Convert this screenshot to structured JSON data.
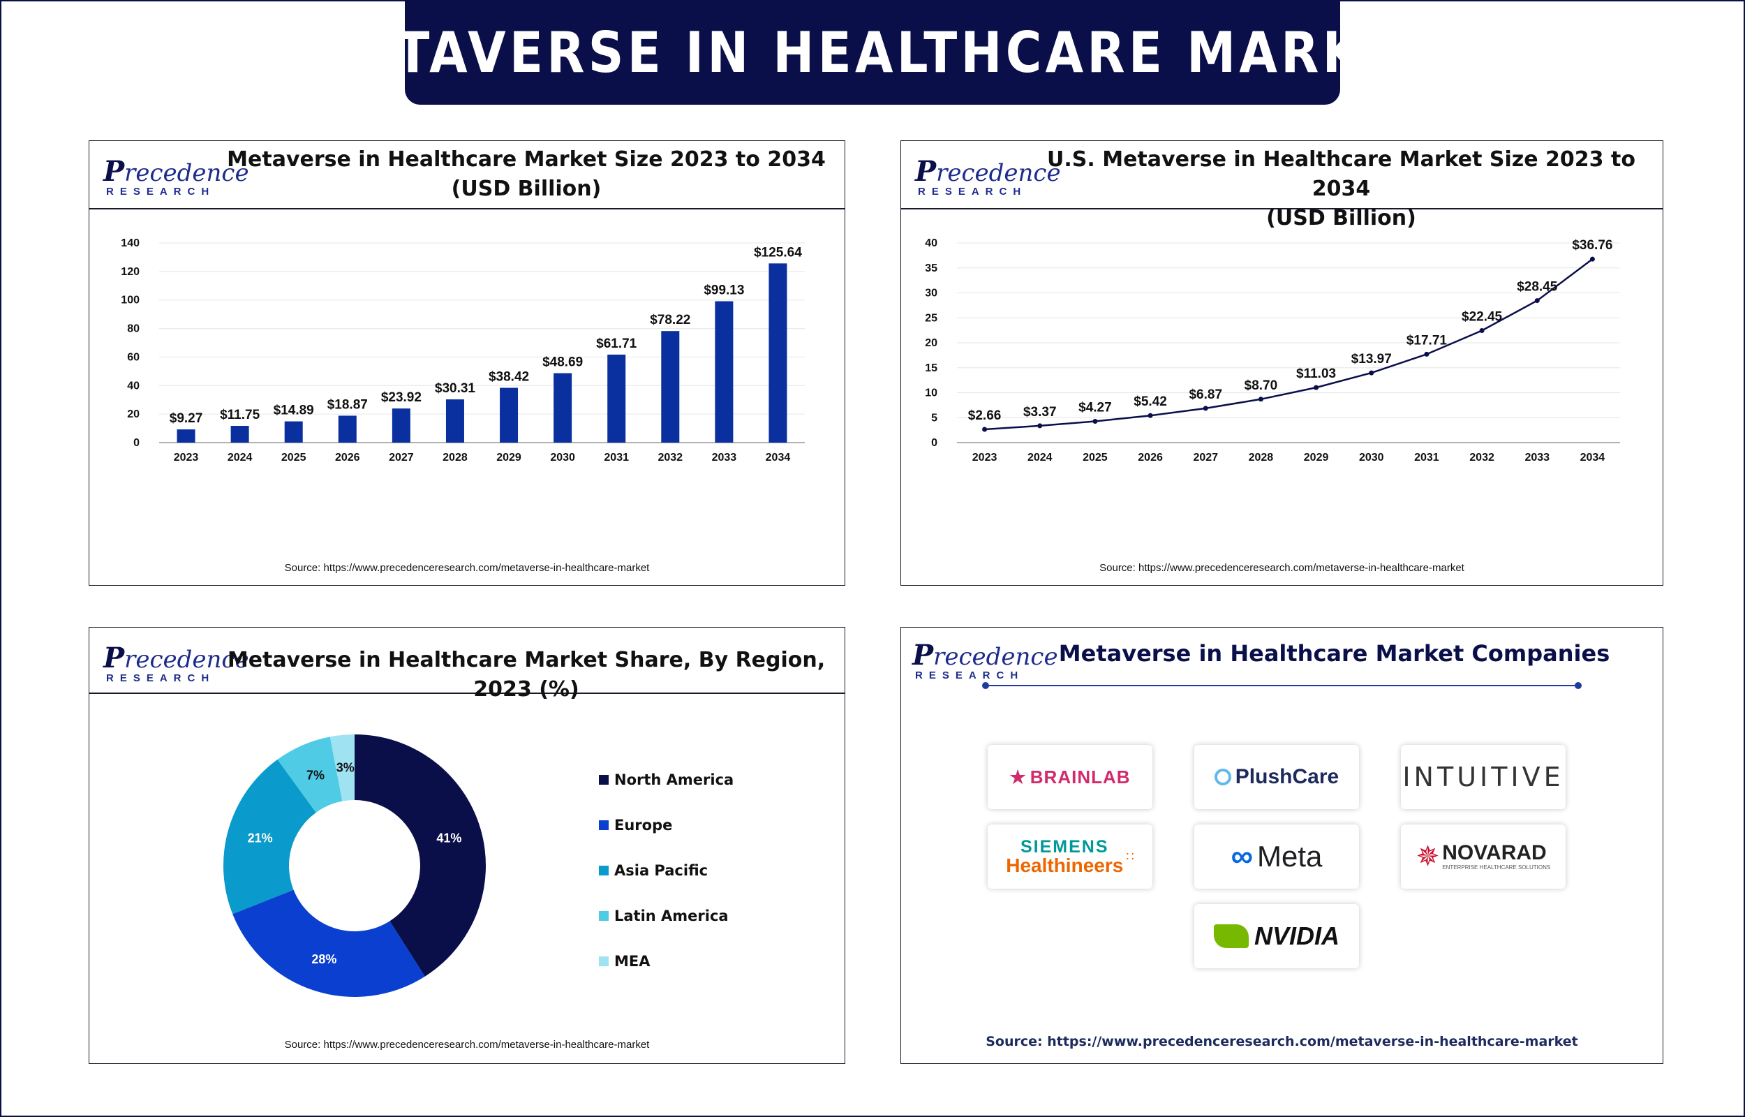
{
  "banner": {
    "title": "METAVERSE IN HEALTHCARE MARKET"
  },
  "logo": {
    "word_cap": "P",
    "word_rest": "recedence",
    "sub": "RESEARCH"
  },
  "panels": {
    "global": {
      "title_line1": "Metaverse in Healthcare Market Size 2023 to 2034",
      "title_line2": "(USD Billion)",
      "source": "Source: https://www.precedenceresearch.com/metaverse-in-healthcare-market"
    },
    "us": {
      "title_line1": "U.S. Metaverse in Healthcare Market Size 2023 to 2034",
      "title_line2": "(USD Billion)",
      "source": "Source: https://www.precedenceresearch.com/metaverse-in-healthcare-market"
    },
    "region": {
      "title": "Metaverse in Healthcare Market  Share, By Region, 2023 (%)",
      "source": "Source: https://www.precedenceresearch.com/metaverse-in-healthcare-market"
    },
    "companies": {
      "title": "Metaverse in Healthcare Market Companies",
      "source": "Source: https://www.precedenceresearch.com/metaverse-in-healthcare-market",
      "items": [
        {
          "name": "BRAINLAB",
          "icon": "brainlab-mark-icon"
        },
        {
          "name": "PlushCare",
          "icon": "plushcare-ring-icon"
        },
        {
          "name": "INTUITIVE"
        },
        {
          "name_line1": "SIEMENS",
          "name_line2": "Healthineers"
        },
        {
          "name": "Meta",
          "icon": "meta-infinity-icon"
        },
        {
          "name": "NOVARAD",
          "tagline": "ENTERPRISE HEALTHCARE SOLUTIONS",
          "icon": "novarad-burst-icon"
        },
        {
          "name": "NVIDIA",
          "icon": "nvidia-eye-icon"
        }
      ]
    }
  },
  "chart_data": [
    {
      "type": "bar",
      "title": "Metaverse in Healthcare Market Size 2023 to 2034 (USD Billion)",
      "categories": [
        "2023",
        "2024",
        "2025",
        "2026",
        "2027",
        "2028",
        "2029",
        "2030",
        "2031",
        "2032",
        "2033",
        "2034"
      ],
      "values": [
        9.27,
        11.75,
        14.89,
        18.87,
        23.92,
        30.31,
        38.42,
        48.69,
        61.71,
        78.22,
        99.13,
        125.64
      ],
      "data_labels": [
        "$9.27",
        "$11.75",
        "$14.89",
        "$18.87",
        "$23.92",
        "$30.31",
        "$38.42",
        "$48.69",
        "$61.71",
        "$78.22",
        "$99.13",
        "$125.64"
      ],
      "ylim": [
        0,
        140
      ],
      "yticks": [
        0,
        20,
        40,
        60,
        80,
        100,
        120,
        140
      ],
      "grid": true,
      "color": "#0a2f9e"
    },
    {
      "type": "line",
      "title": "U.S. Metaverse in Healthcare Market Size 2023 to 2034 (USD Billion)",
      "categories": [
        "2023",
        "2024",
        "2025",
        "2026",
        "2027",
        "2028",
        "2029",
        "2030",
        "2031",
        "2032",
        "2033",
        "2034"
      ],
      "values": [
        2.66,
        3.37,
        4.27,
        5.42,
        6.87,
        8.7,
        11.03,
        13.97,
        17.71,
        22.45,
        28.45,
        36.76
      ],
      "data_labels": [
        "$2.66",
        "$3.37",
        "$4.27",
        "$5.42",
        "$6.87",
        "$8.70",
        "$11.03",
        "$13.97",
        "$17.71",
        "$22.45",
        "$28.45",
        "$36.76"
      ],
      "ylim": [
        0,
        40
      ],
      "yticks": [
        0,
        5,
        10,
        15,
        20,
        25,
        30,
        35,
        40
      ],
      "grid": true,
      "color": "#0a0f4a"
    },
    {
      "type": "pie",
      "title": "Metaverse in Healthcare Market  Share, By Region, 2023 (%)",
      "donut": true,
      "legend_position": "right",
      "slices": [
        {
          "name": "North America",
          "value": 41,
          "label": "41%",
          "color": "#0a0f4a"
        },
        {
          "name": "Europe",
          "value": 28,
          "label": "28%",
          "color": "#0a3fd0"
        },
        {
          "name": "Asia Pacific",
          "value": 21,
          "label": "21%",
          "color": "#0a9acb"
        },
        {
          "name": "Latin America",
          "value": 7,
          "label": "7%",
          "color": "#4fcbe6"
        },
        {
          "name": "MEA",
          "value": 3,
          "label": "3%",
          "color": "#9fe2f2"
        }
      ]
    }
  ]
}
